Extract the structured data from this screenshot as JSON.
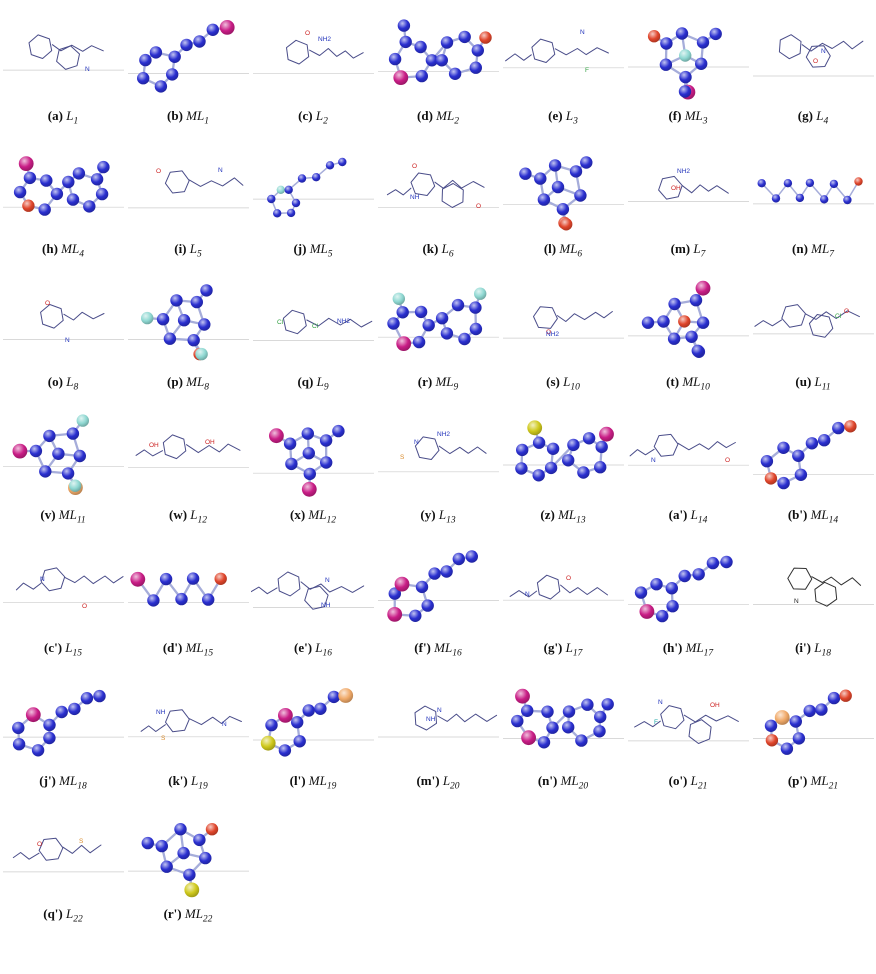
{
  "palette": {
    "background": "#ffffff",
    "ball_base": "#2a2fd0",
    "bond": "#a6adda",
    "skeletal_line": "#3b3e80",
    "magenta": "#c91d86",
    "red": "#e0452b",
    "cyan": "#8fd8d2",
    "yellow": "#cfc91c",
    "orange": "#f0a968",
    "green": "#3eb049",
    "rule_line": "#cccccc",
    "label_color": "#111111"
  },
  "figure": {
    "items": [
      {
        "label": "(a)",
        "name": "L",
        "sub": "1",
        "kind": "skeletal",
        "seed": 11,
        "letters": [
          {
            "t": "N",
            "c": "blue"
          }
        ]
      },
      {
        "label": "(b)",
        "name": "ML",
        "sub": "1",
        "kind": "ball",
        "form": "ring-chain",
        "accents": [
          "magenta"
        ],
        "seed": 12
      },
      {
        "label": "(c)",
        "name": "L",
        "sub": "2",
        "kind": "skeletal",
        "seed": 13,
        "letters": [
          {
            "t": "O",
            "c": "red"
          },
          {
            "t": "NH2",
            "c": "blue"
          }
        ]
      },
      {
        "label": "(d)",
        "name": "ML",
        "sub": "2",
        "kind": "ball",
        "form": "two-ring",
        "accents": [
          "magenta",
          "red"
        ],
        "seed": 14
      },
      {
        "label": "(e)",
        "name": "L",
        "sub": "3",
        "kind": "skeletal",
        "seed": 15,
        "letters": [
          {
            "t": "N",
            "c": "blue"
          },
          {
            "t": "F",
            "c": "green"
          }
        ]
      },
      {
        "label": "(f)",
        "name": "ML",
        "sub": "3",
        "kind": "ball",
        "form": "cluster",
        "accents": [
          "cyan",
          "magenta",
          "red"
        ],
        "seed": 16
      },
      {
        "label": "(g)",
        "name": "L",
        "sub": "4",
        "kind": "skeletal",
        "seed": 17,
        "letters": [
          {
            "t": "O",
            "c": "red"
          },
          {
            "t": "N",
            "c": "blue"
          }
        ]
      },
      {
        "label": "(h)",
        "name": "ML",
        "sub": "4",
        "kind": "ball",
        "form": "two-ring",
        "accents": [
          "red",
          "magenta"
        ],
        "seed": 18
      },
      {
        "label": "(i)",
        "name": "L",
        "sub": "5",
        "kind": "skeletal",
        "seed": 19,
        "letters": [
          {
            "t": "O",
            "c": "red"
          },
          {
            "t": "N",
            "c": "blue"
          }
        ]
      },
      {
        "label": "(j)",
        "name": "ML",
        "sub": "5",
        "kind": "ball",
        "form": "ring-chain",
        "size": "small",
        "accents": [
          "cyan"
        ],
        "seed": 20
      },
      {
        "label": "(k)",
        "name": "L",
        "sub": "6",
        "kind": "skeletal",
        "seed": 21,
        "letters": [
          {
            "t": "O",
            "c": "red"
          },
          {
            "t": "O",
            "c": "red"
          },
          {
            "t": "NH",
            "c": "blue"
          }
        ]
      },
      {
        "label": "(l)",
        "name": "ML",
        "sub": "6",
        "kind": "ball",
        "form": "cluster",
        "accents": [
          "red",
          "red"
        ],
        "seed": 22
      },
      {
        "label": "(m)",
        "name": "L",
        "sub": "7",
        "kind": "skeletal",
        "seed": 23,
        "letters": [
          {
            "t": "OH",
            "c": "red"
          },
          {
            "t": "NH2",
            "c": "blue"
          }
        ]
      },
      {
        "label": "(n)",
        "name": "ML",
        "sub": "7",
        "kind": "ball",
        "form": "chain",
        "size": "small",
        "accents": [
          "red"
        ],
        "seed": 24
      },
      {
        "label": "(o)",
        "name": "L",
        "sub": "8",
        "kind": "skeletal",
        "seed": 25,
        "letters": [
          {
            "t": "O",
            "c": "red"
          },
          {
            "t": "N",
            "c": "blue"
          }
        ]
      },
      {
        "label": "(p)",
        "name": "ML",
        "sub": "8",
        "kind": "ball",
        "form": "cluster",
        "accents": [
          "red",
          "cyan",
          "cyan"
        ],
        "seed": 26
      },
      {
        "label": "(q)",
        "name": "L",
        "sub": "9",
        "kind": "skeletal",
        "seed": 27,
        "letters": [
          {
            "t": "Cl",
            "c": "green"
          },
          {
            "t": "Cl",
            "c": "green"
          },
          {
            "t": "NH2",
            "c": "blue"
          }
        ]
      },
      {
        "label": "(r)",
        "name": "ML",
        "sub": "9",
        "kind": "ball",
        "form": "two-ring",
        "accents": [
          "magenta",
          "cyan",
          "cyan"
        ],
        "seed": 28
      },
      {
        "label": "(s)",
        "name": "L",
        "sub": "10",
        "kind": "skeletal",
        "seed": 29,
        "letters": [
          {
            "t": "O",
            "c": "red"
          },
          {
            "t": "NH2",
            "c": "blue"
          }
        ]
      },
      {
        "label": "(t)",
        "name": "ML",
        "sub": "10",
        "kind": "ball",
        "form": "cluster",
        "accents": [
          "magenta",
          "red"
        ],
        "seed": 30
      },
      {
        "label": "(u)",
        "name": "L",
        "sub": "11",
        "kind": "skeletal",
        "seed": 31,
        "letters": [
          {
            "t": "Cl",
            "c": "green"
          },
          {
            "t": "O",
            "c": "red"
          }
        ]
      },
      {
        "label": "(v)",
        "name": "ML",
        "sub": "11",
        "kind": "ball",
        "form": "cluster",
        "accents": [
          "cyan",
          "orange",
          "magenta",
          "cyan"
        ],
        "seed": 32
      },
      {
        "label": "(w)",
        "name": "L",
        "sub": "12",
        "kind": "skeletal",
        "seed": 33,
        "letters": [
          {
            "t": "OH",
            "c": "red"
          },
          {
            "t": "OH",
            "c": "red"
          }
        ]
      },
      {
        "label": "(x)",
        "name": "ML",
        "sub": "12",
        "kind": "ball",
        "form": "cluster",
        "accents": [
          "magenta",
          "red",
          "magenta"
        ],
        "seed": 34
      },
      {
        "label": "(y)",
        "name": "L",
        "sub": "13",
        "kind": "skeletal",
        "seed": 35,
        "letters": [
          {
            "t": "N",
            "c": "blue"
          },
          {
            "t": "NH2",
            "c": "blue"
          },
          {
            "t": "S",
            "c": "orange"
          }
        ]
      },
      {
        "label": "(z)",
        "name": "ML",
        "sub": "13",
        "kind": "ball",
        "form": "two-ring",
        "accents": [
          "yellow",
          "magenta"
        ],
        "seed": 36
      },
      {
        "label": "(a')",
        "name": "L",
        "sub": "14",
        "kind": "skeletal",
        "seed": 37,
        "letters": [
          {
            "t": "O",
            "c": "red"
          },
          {
            "t": "N",
            "c": "blue"
          }
        ]
      },
      {
        "label": "(b')",
        "name": "ML",
        "sub": "14",
        "kind": "ball",
        "form": "ring-chain",
        "accents": [
          "red",
          "red"
        ],
        "seed": 38
      },
      {
        "label": "(c')",
        "name": "L",
        "sub": "15",
        "kind": "skeletal",
        "seed": 39,
        "letters": [
          {
            "t": "O",
            "c": "red"
          },
          {
            "t": "N",
            "c": "blue"
          }
        ]
      },
      {
        "label": "(d')",
        "name": "ML",
        "sub": "15",
        "kind": "ball",
        "form": "chain",
        "accents": [
          "magenta",
          "red"
        ],
        "seed": 40
      },
      {
        "label": "(e')",
        "name": "L",
        "sub": "16",
        "kind": "skeletal",
        "seed": 41,
        "letters": [
          {
            "t": "N",
            "c": "blue"
          },
          {
            "t": "NH",
            "c": "blue"
          }
        ]
      },
      {
        "label": "(f')",
        "name": "ML",
        "sub": "16",
        "kind": "ball",
        "form": "ring-chain",
        "accents": [
          "magenta",
          "magenta"
        ],
        "seed": 42
      },
      {
        "label": "(g')",
        "name": "L",
        "sub": "17",
        "kind": "skeletal",
        "seed": 43,
        "letters": [
          {
            "t": "N",
            "c": "blue"
          },
          {
            "t": "O",
            "c": "red"
          }
        ]
      },
      {
        "label": "(h')",
        "name": "ML",
        "sub": "17",
        "kind": "ball",
        "form": "ring-chain",
        "accents": [
          "magenta"
        ],
        "seed": 44
      },
      {
        "label": "(i')",
        "name": "L",
        "sub": "18",
        "kind": "skeletal",
        "ink": "#1f1f1f",
        "seed": 45,
        "letters": [
          {
            "t": "N",
            "c": "dark"
          }
        ]
      },
      {
        "label": "(j')",
        "name": "ML",
        "sub": "18",
        "kind": "ball",
        "form": "ring-chain",
        "accents": [
          "magenta"
        ],
        "seed": 46
      },
      {
        "label": "(k')",
        "name": "L",
        "sub": "19",
        "kind": "skeletal",
        "seed": 47,
        "letters": [
          {
            "t": "S",
            "c": "orange"
          },
          {
            "t": "N",
            "c": "blue"
          },
          {
            "t": "NH",
            "c": "blue"
          }
        ]
      },
      {
        "label": "(l')",
        "name": "ML",
        "sub": "19",
        "kind": "ball",
        "form": "ring-chain",
        "accents": [
          "yellow",
          "magenta",
          "orange"
        ],
        "seed": 48
      },
      {
        "label": "(m')",
        "name": "L",
        "sub": "20",
        "kind": "skeletal",
        "seed": 49,
        "letters": [
          {
            "t": "NH",
            "c": "blue"
          },
          {
            "t": "N",
            "c": "blue"
          }
        ]
      },
      {
        "label": "(n')",
        "name": "ML",
        "sub": "20",
        "kind": "ball",
        "form": "two-ring",
        "accents": [
          "magenta",
          "magenta"
        ],
        "seed": 50
      },
      {
        "label": "(o')",
        "name": "L",
        "sub": "21",
        "kind": "skeletal",
        "seed": 51,
        "letters": [
          {
            "t": "N",
            "c": "blue"
          },
          {
            "t": "F",
            "c": "cyan"
          },
          {
            "t": "OH",
            "c": "red"
          }
        ]
      },
      {
        "label": "(p')",
        "name": "ML",
        "sub": "21",
        "kind": "ball",
        "form": "ring-chain",
        "accents": [
          "orange",
          "red",
          "red"
        ],
        "seed": 52
      },
      {
        "label": "(q')",
        "name": "L",
        "sub": "22",
        "kind": "skeletal",
        "seed": 53,
        "letters": [
          {
            "t": "O",
            "c": "red"
          },
          {
            "t": "S",
            "c": "orange"
          }
        ]
      },
      {
        "label": "(r')",
        "name": "ML",
        "sub": "22",
        "kind": "ball",
        "form": "cluster",
        "accents": [
          "yellow",
          "red",
          "red"
        ],
        "seed": 54
      }
    ]
  }
}
